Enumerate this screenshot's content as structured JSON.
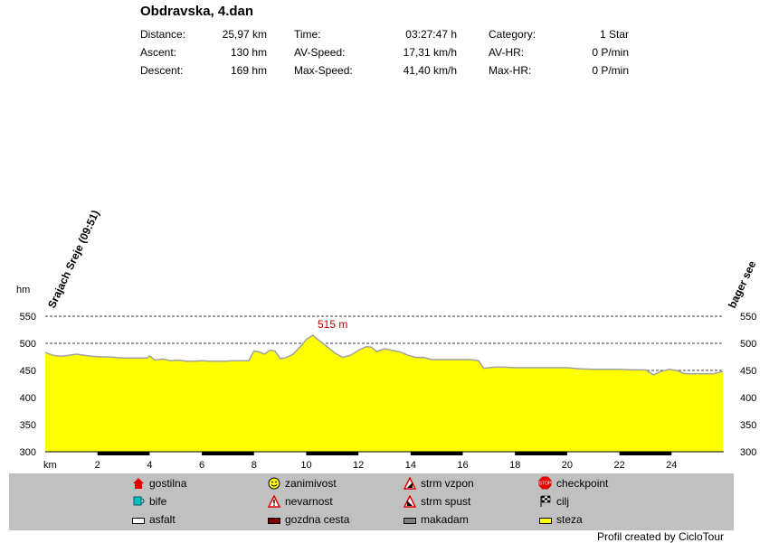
{
  "title": "Obdravska, 4.dan",
  "stats": [
    {
      "label": "Distance:",
      "value": "25,97 km"
    },
    {
      "label": "Ascent:",
      "value": "130 hm"
    },
    {
      "label": "Descent:",
      "value": "169 hm"
    },
    {
      "label": "Time:",
      "value": "03:27:47 h"
    },
    {
      "label": "AV-Speed:",
      "value": "17,31 km/h"
    },
    {
      "label": "Max-Speed:",
      "value": "41,40 km/h"
    },
    {
      "label": "Category:",
      "value": "1 Star"
    },
    {
      "label": "AV-HR:",
      "value": "0 P/min"
    },
    {
      "label": "Max-HR:",
      "value": "0 P/min"
    }
  ],
  "chart_data": {
    "type": "area",
    "ylabel": "hm",
    "xlabel": "km",
    "xlim": [
      0,
      26
    ],
    "ylim": [
      300,
      550
    ],
    "yticks": [
      300,
      350,
      400,
      450,
      500,
      550
    ],
    "xticks": [
      2,
      4,
      6,
      8,
      10,
      12,
      14,
      16,
      18,
      20,
      22,
      24
    ],
    "grid": true,
    "fill_color": "#ffff00",
    "line_color": "#a0a0a0",
    "start_label": "Srajach Sreje (09:51)",
    "end_label": "bager see",
    "max_label": "515 m",
    "max_point": [
      10.25,
      515
    ],
    "x": [
      0,
      0.3,
      0.6,
      0.9,
      1.2,
      1.5,
      1.8,
      2.1,
      2.4,
      2.7,
      3.0,
      3.3,
      3.6,
      3.9,
      4.0,
      4.2,
      4.5,
      4.8,
      5.1,
      5.4,
      5.7,
      6.0,
      6.3,
      6.6,
      6.9,
      7.2,
      7.5,
      7.8,
      8.0,
      8.2,
      8.4,
      8.6,
      8.8,
      9.0,
      9.2,
      9.5,
      9.8,
      10.0,
      10.25,
      10.5,
      10.8,
      11.1,
      11.4,
      11.7,
      12.0,
      12.3,
      12.5,
      12.7,
      13.0,
      13.3,
      13.6,
      13.9,
      14.2,
      14.5,
      14.8,
      15.1,
      15.4,
      15.7,
      16.0,
      16.3,
      16.6,
      16.8,
      17.2,
      17.6,
      18.0,
      18.5,
      19.0,
      19.5,
      20.0,
      20.5,
      21.0,
      21.5,
      22.0,
      22.5,
      23.0,
      23.3,
      23.6,
      23.9,
      24.2,
      24.5,
      24.8,
      25.2,
      25.6,
      25.97
    ],
    "y": [
      483,
      478,
      476,
      478,
      480,
      478,
      476,
      475,
      475,
      474,
      473,
      473,
      473,
      473,
      477,
      469,
      471,
      468,
      469,
      467,
      467,
      468,
      467,
      467,
      467,
      468,
      468,
      468,
      486,
      484,
      480,
      487,
      486,
      472,
      473,
      480,
      495,
      507,
      515,
      505,
      494,
      482,
      474,
      478,
      487,
      494,
      493,
      485,
      490,
      487,
      484,
      478,
      474,
      474,
      470,
      470,
      470,
      470,
      470,
      470,
      468,
      454,
      456,
      456,
      455,
      455,
      455,
      455,
      455,
      453,
      452,
      452,
      452,
      451,
      451,
      442,
      448,
      452,
      450,
      444,
      444,
      444,
      444,
      448
    ]
  },
  "legend": [
    {
      "icon": "house",
      "label": "gostilna"
    },
    {
      "icon": "smiley",
      "label": "zanimivost"
    },
    {
      "icon": "steep-up",
      "label": "strm vzpon"
    },
    {
      "icon": "stop",
      "label": "checkpoint"
    },
    {
      "icon": "cup",
      "label": "bife"
    },
    {
      "icon": "warning",
      "label": "nevarnost"
    },
    {
      "icon": "steep-down",
      "label": "strm spust"
    },
    {
      "icon": "flag",
      "label": "cilj"
    },
    {
      "icon": "surface-asfalt",
      "label": "asfalt",
      "color": "#ffffff"
    },
    {
      "icon": "surface-gozdna",
      "label": "gozdna cesta",
      "color": "#800000"
    },
    {
      "icon": "surface-makadam",
      "label": "makadam",
      "color": "#808080"
    },
    {
      "icon": "surface-steza",
      "label": "steza",
      "color": "#ffff00"
    }
  ],
  "credit": "Profil created by CicloTour"
}
